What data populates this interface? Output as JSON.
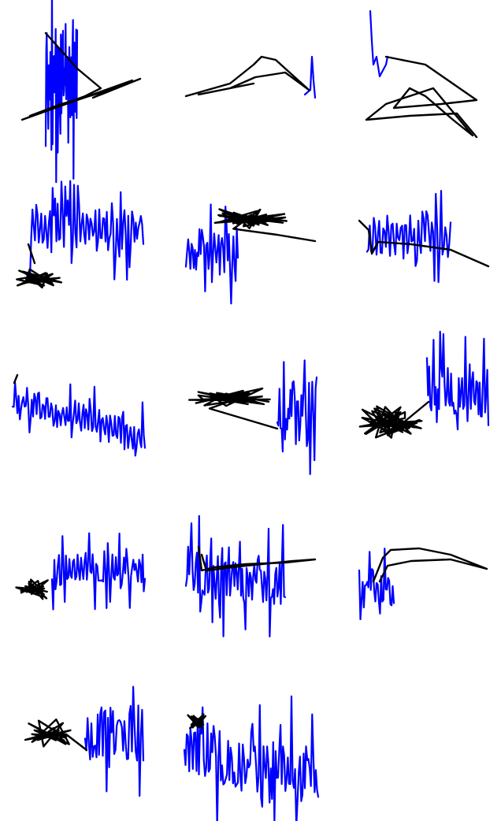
{
  "colors": {
    "background": "#ffffff",
    "pen_trace": "#0000ff",
    "ink_trace": "#000000"
  },
  "grid": {
    "rows": 5,
    "columns": 3,
    "panel_count": 14
  }
}
